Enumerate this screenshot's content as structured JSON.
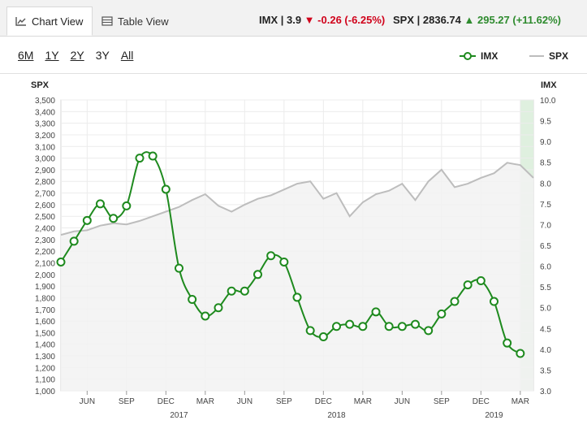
{
  "tabs": {
    "chart_view": "Chart View",
    "table_view": "Table View"
  },
  "quotes": {
    "imx": {
      "label": "IMX | 3.9",
      "change": "-0.26 (-6.25%)",
      "direction": "down"
    },
    "spx": {
      "label": "SPX | 2836.74",
      "change": "295.27 (+11.62%)",
      "direction": "up"
    }
  },
  "ranges": [
    "6M",
    "1Y",
    "2Y",
    "3Y",
    "All"
  ],
  "active_range": "3Y",
  "legend": {
    "imx": "IMX",
    "spx": "SPX"
  },
  "colors": {
    "imx": "#1e8a1e",
    "spx": "#bdbdbd",
    "area": "#f2f2f2",
    "down": "#d0021b",
    "up": "#2e8b2e",
    "highlight": "#dff0df"
  },
  "chart_data": {
    "type": "line",
    "y_left_title": "SPX",
    "y_right_title": "IMX",
    "y_left_ticks": [
      "1,000",
      "1,100",
      "1,200",
      "1,300",
      "1,400",
      "1,500",
      "1,600",
      "1,700",
      "1,800",
      "1,900",
      "2,000",
      "2,100",
      "2,200",
      "2,300",
      "2,400",
      "2,500",
      "2,600",
      "2,700",
      "2,800",
      "2,900",
      "3,000",
      "3,100",
      "3,200",
      "3,300",
      "3,400",
      "3,500"
    ],
    "y_right_ticks": [
      "3.0",
      "3.5",
      "4.0",
      "4.5",
      "5.0",
      "5.5",
      "6.0",
      "6.5",
      "7.0",
      "7.5",
      "8.0",
      "8.5",
      "9.0",
      "9.5",
      "10.0"
    ],
    "ylim_left": [
      1000,
      3500
    ],
    "ylim_right": [
      3.0,
      10.0
    ],
    "x_range": [
      "2016-04",
      "2019-04"
    ],
    "x_ticks": [
      {
        "x": "2016-06",
        "label": "JUN"
      },
      {
        "x": "2016-09",
        "label": "SEP"
      },
      {
        "x": "2016-12",
        "label": "DEC"
      },
      {
        "x": "2017-03",
        "label": "MAR"
      },
      {
        "x": "2017-06",
        "label": "JUN"
      },
      {
        "x": "2017-09",
        "label": "SEP"
      },
      {
        "x": "2017-12",
        "label": "DEC"
      },
      {
        "x": "2018-03",
        "label": "MAR"
      },
      {
        "x": "2018-06",
        "label": "JUN"
      },
      {
        "x": "2018-09",
        "label": "SEP"
      },
      {
        "x": "2018-12",
        "label": "DEC"
      },
      {
        "x": "2019-03",
        "label": "MAR"
      }
    ],
    "year_labels": [
      {
        "x": "2017-01",
        "label": "2017"
      },
      {
        "x": "2018-01",
        "label": "2018"
      },
      {
        "x": "2019-01",
        "label": "2019"
      }
    ],
    "series": [
      {
        "name": "SPX",
        "axis": "left",
        "style": "area",
        "points": [
          [
            "2016-04",
            2340
          ],
          [
            "2016-05",
            2370
          ],
          [
            "2016-06",
            2380
          ],
          [
            "2016-07",
            2420
          ],
          [
            "2016-08",
            2440
          ],
          [
            "2016-09",
            2430
          ],
          [
            "2016-10",
            2460
          ],
          [
            "2016-11",
            2500
          ],
          [
            "2016-12",
            2540
          ],
          [
            "2017-01",
            2580
          ],
          [
            "2017-02",
            2640
          ],
          [
            "2017-03",
            2690
          ],
          [
            "2017-04",
            2590
          ],
          [
            "2017-05",
            2540
          ],
          [
            "2017-06",
            2600
          ],
          [
            "2017-07",
            2650
          ],
          [
            "2017-08",
            2680
          ],
          [
            "2017-09",
            2730
          ],
          [
            "2017-10",
            2780
          ],
          [
            "2017-11",
            2800
          ],
          [
            "2017-12",
            2650
          ],
          [
            "2018-01",
            2700
          ],
          [
            "2018-02",
            2500
          ],
          [
            "2018-03",
            2620
          ],
          [
            "2018-04",
            2690
          ],
          [
            "2018-05",
            2720
          ],
          [
            "2018-06",
            2780
          ],
          [
            "2018-07",
            2640
          ],
          [
            "2018-08",
            2800
          ],
          [
            "2018-09",
            2900
          ],
          [
            "2018-10",
            2750
          ],
          [
            "2018-11",
            2780
          ],
          [
            "2018-12",
            2830
          ],
          [
            "2019-01",
            2870
          ],
          [
            "2019-02",
            2960
          ],
          [
            "2019-03",
            2940
          ],
          [
            "2019-04",
            2830
          ]
        ]
      },
      {
        "name": "IMX",
        "axis": "right",
        "style": "line-markers",
        "points": [
          [
            "2016-04",
            6.1
          ],
          [
            "2016-05",
            6.6
          ],
          [
            "2016-06",
            7.1
          ],
          [
            "2016-07",
            7.5
          ],
          [
            "2016-08",
            7.15
          ],
          [
            "2016-09",
            7.45
          ],
          [
            "2016-10",
            8.6
          ],
          [
            "2016-11",
            8.65
          ],
          [
            "2016-12",
            7.85
          ],
          [
            "2017-01",
            5.95
          ],
          [
            "2017-02",
            5.2
          ],
          [
            "2017-03",
            4.8
          ],
          [
            "2017-04",
            5.0
          ],
          [
            "2017-05",
            5.4
          ],
          [
            "2017-06",
            5.4
          ],
          [
            "2017-07",
            5.8
          ],
          [
            "2017-08",
            6.25
          ],
          [
            "2017-09",
            6.1
          ],
          [
            "2017-10",
            5.25
          ],
          [
            "2017-11",
            4.45
          ],
          [
            "2017-12",
            4.3
          ],
          [
            "2018-01",
            4.55
          ],
          [
            "2018-02",
            4.6
          ],
          [
            "2018-03",
            4.55
          ],
          [
            "2018-04",
            4.9
          ],
          [
            "2018-05",
            4.55
          ],
          [
            "2018-06",
            4.55
          ],
          [
            "2018-07",
            4.6
          ],
          [
            "2018-08",
            4.45
          ],
          [
            "2018-09",
            4.85
          ],
          [
            "2018-10",
            5.15
          ],
          [
            "2018-11",
            5.55
          ],
          [
            "2018-12",
            5.65
          ],
          [
            "2019-01",
            5.15
          ],
          [
            "2019-02",
            4.15
          ],
          [
            "2019-03",
            3.9
          ]
        ]
      }
    ],
    "highlight_range": [
      "2019-03",
      "2019-04"
    ]
  }
}
